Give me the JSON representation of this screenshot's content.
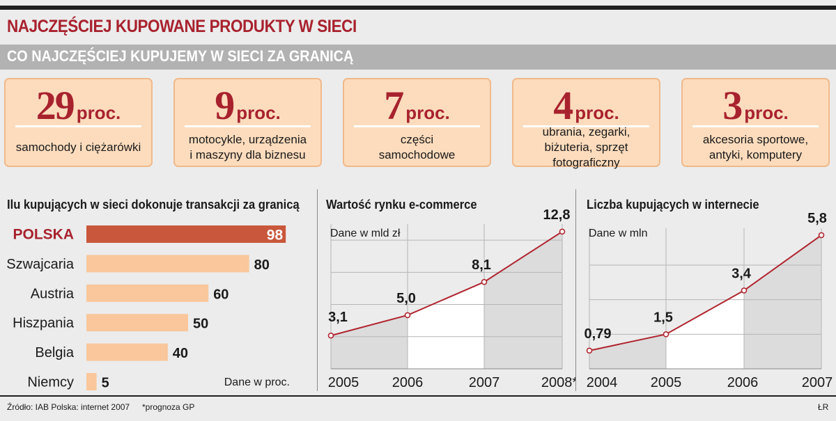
{
  "header": {
    "title": "NAJCZĘŚCIEJ KUPOWANE PRODUKTY W SIECI",
    "subtitle": "CO NAJCZĘŚCIEJ KUPUJEMY W SIECI ZA GRANICĄ"
  },
  "cards": [
    {
      "value": "29",
      "unit": "proc.",
      "desc": "samochody i ciężarówki"
    },
    {
      "value": "9",
      "unit": "proc.",
      "desc": "motocykle, urządzenia i maszyny dla biznesu"
    },
    {
      "value": "7",
      "unit": "proc.",
      "desc": "części samochodowe"
    },
    {
      "value": "4",
      "unit": "proc.",
      "desc": "ubrania, zegarki, biżuteria, sprzęt fotograficzny"
    },
    {
      "value": "3",
      "unit": "proc.",
      "desc": "akcesoria sportowe, antyki, komputery"
    }
  ],
  "colors": {
    "brand_red": "#a8222e",
    "bar_highlight": "#c9573b",
    "bar": "#f9c79b",
    "card_bg": "#fcdcbd",
    "area_fill": "#dcdcdc",
    "line": "#b0252f"
  },
  "chart_data": [
    {
      "type": "bar",
      "title": "Ilu kupujących w sieci dokonuje transakcji za granicą",
      "unit_label": "Dane w proc.",
      "categories": [
        "POLSKA",
        "Szwajcaria",
        "Austria",
        "Hiszpania",
        "Belgia",
        "Niemcy"
      ],
      "values": [
        98,
        80,
        60,
        50,
        40,
        5
      ],
      "highlight": "POLSKA",
      "xlim": [
        0,
        100
      ]
    },
    {
      "type": "area",
      "title": "Wartość rynku e-commerce",
      "unit_label": "Dane w mld zł",
      "x": [
        "2005",
        "2006",
        "2007",
        "2008*"
      ],
      "values": [
        3.1,
        5.0,
        8.1,
        12.8
      ],
      "labels": [
        "3,1",
        "5,0",
        "8,1",
        "12,8"
      ],
      "ylim": [
        0,
        13.5
      ]
    },
    {
      "type": "area",
      "title": "Liczba kupujących w internecie",
      "unit_label": "Dane w mln",
      "x": [
        "2004",
        "2005",
        "2006",
        "2007"
      ],
      "values": [
        0.79,
        1.5,
        3.4,
        5.8
      ],
      "labels": [
        "0,79",
        "1,5",
        "3,4",
        "5,8"
      ],
      "ylim": [
        0,
        6.1
      ]
    }
  ],
  "footer": {
    "source": "Źródło: IAB Polska: internet 2007",
    "note": "*prognoza GP",
    "credit": "ŁR"
  }
}
